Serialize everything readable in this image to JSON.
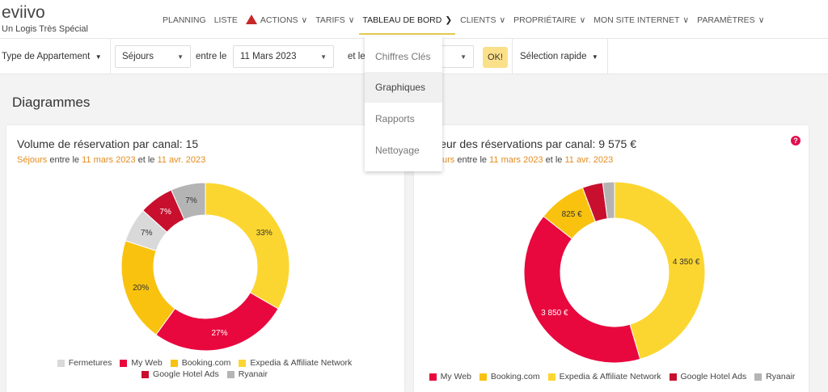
{
  "header": {
    "logo": "eviivo",
    "subtitle": "Un Logis Très Spécial",
    "nav": [
      {
        "label": "PLANNING"
      },
      {
        "label": "LISTE"
      },
      {
        "label": "ACTIONS",
        "icon": "warning-icon",
        "chev": "∨"
      },
      {
        "label": "TARIFS",
        "chev": "∨"
      },
      {
        "label": "TABLEAU DE BORD",
        "chev": "❯"
      },
      {
        "label": "CLIENTS",
        "chev": "∨"
      },
      {
        "label": "PROPRIÉTAIRE",
        "chev": "∨"
      },
      {
        "label": "MON SITE INTERNET",
        "chev": "∨"
      },
      {
        "label": "PARAMÈTRES",
        "chev": "∨"
      }
    ]
  },
  "toolbar": {
    "room_type": "Type de Appartement",
    "stay_type": "Séjours",
    "between": "entre le",
    "start_date": "11 Mars 2023",
    "and": "et le",
    "ok": "OK!",
    "quick_select": "Sélection rapide",
    "caret": "▼"
  },
  "dropdown": {
    "items": [
      "Chiffres Clés",
      "Graphiques",
      "Rapports",
      "Nettoyage"
    ],
    "hovered": "Graphiques"
  },
  "page": {
    "title": "Diagrammes"
  },
  "colors": {
    "Fermetures": "#d9d9d9",
    "My Web": "#e8083e",
    "Booking.com": "#f8c20f",
    "Expedia & Affiliate Network": "#fcd630",
    "Google Hotel Ads": "#c8102e",
    "Ryanair": "#b4b4b4",
    "accent": "#e38b1e"
  },
  "chart_data": [
    {
      "type": "pie",
      "donut": true,
      "title": "Volume de réservation par canal: 15",
      "subtitle": {
        "a": "Séjours",
        "b": " entre le ",
        "c": "11 mars 2023",
        "d": " et le ",
        "e": "11 avr. 2023"
      },
      "slices": [
        {
          "name": "Expedia & Affiliate Network",
          "value": 5,
          "label": "33%"
        },
        {
          "name": "My Web",
          "value": 4,
          "label": "27%"
        },
        {
          "name": "Booking.com",
          "value": 3,
          "label": "20%"
        },
        {
          "name": "Fermetures",
          "value": 1,
          "label": "7%"
        },
        {
          "name": "Google Hotel Ads",
          "value": 1,
          "label": "7%"
        },
        {
          "name": "Ryanair",
          "value": 1,
          "label": "7%"
        }
      ],
      "legend": [
        "Fermetures",
        "My Web",
        "Booking.com",
        "Expedia & Affiliate Network",
        "Google Hotel Ads",
        "Ryanair"
      ],
      "legend_position": "bottom"
    },
    {
      "type": "pie",
      "donut": true,
      "title": "Valeur des réservations par canal: 9 575 €",
      "subtitle": {
        "a": "Séjours",
        "b": " entre le ",
        "c": "11 mars 2023",
        "d": " et le ",
        "e": "11 avr. 2023"
      },
      "slices": [
        {
          "name": "Expedia & Affiliate Network",
          "value": 4350,
          "label": "4 350 €"
        },
        {
          "name": "My Web",
          "value": 3850,
          "label": "3 850 €"
        },
        {
          "name": "Booking.com",
          "value": 825,
          "label": "825 €"
        },
        {
          "name": "Google Hotel Ads",
          "value": 350,
          "label": ""
        },
        {
          "name": "Ryanair",
          "value": 200,
          "label": ""
        }
      ],
      "legend": [
        "My Web",
        "Booking.com",
        "Expedia & Affiliate Network",
        "Google Hotel Ads",
        "Ryanair"
      ],
      "legend_position": "bottom",
      "help": "?"
    }
  ]
}
